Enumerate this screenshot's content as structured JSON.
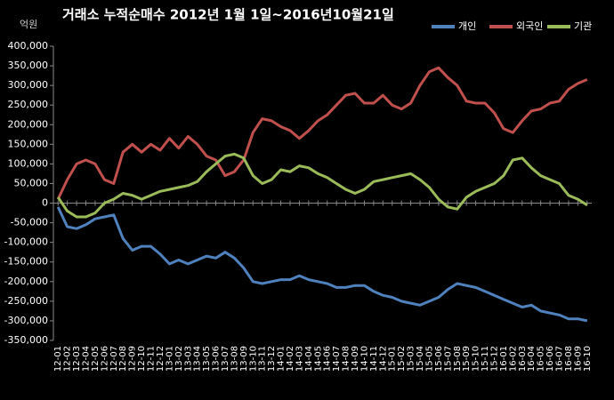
{
  "chart_data": {
    "type": "line",
    "title": "거래소 누적순매수 2012년 1월 1일~2016년10월21일",
    "y_label": "억원",
    "categories": [
      "12-01",
      "12-02",
      "12-03",
      "12-04",
      "12-05",
      "12-06",
      "12-07",
      "12-08",
      "12-09",
      "12-10",
      "12-11",
      "12-12",
      "13-01",
      "13-02",
      "13-03",
      "13-04",
      "13-05",
      "13-06",
      "13-07",
      "13-08",
      "13-09",
      "13-10",
      "13-11",
      "13-12",
      "14-01",
      "14-02",
      "14-03",
      "14-04",
      "14-05",
      "14-06",
      "14-07",
      "14-08",
      "14-09",
      "14-10",
      "14-11",
      "14-12",
      "15-01",
      "15-02",
      "15-03",
      "15-04",
      "15-05",
      "15-06",
      "15-07",
      "15-08",
      "15-09",
      "15-10",
      "15-11",
      "15-12",
      "16-01",
      "16-02",
      "16-03",
      "16-04",
      "16-05",
      "16-06",
      "16-07",
      "16-08",
      "16-09",
      "16-10"
    ],
    "series": [
      {
        "name": "개인",
        "color": "#4f81bd",
        "values": [
          -10000,
          -60000,
          -65000,
          -55000,
          -40000,
          -35000,
          -30000,
          -90000,
          -120000,
          -110000,
          -110000,
          -130000,
          -155000,
          -145000,
          -155000,
          -145000,
          -135000,
          -140000,
          -125000,
          -140000,
          -165000,
          -200000,
          -205000,
          -200000,
          -195000,
          -195000,
          -185000,
          -195000,
          -200000,
          -205000,
          -215000,
          -215000,
          -210000,
          -210000,
          -225000,
          -235000,
          -240000,
          -250000,
          -255000,
          -260000,
          -250000,
          -240000,
          -220000,
          -205000,
          -210000,
          -215000,
          -225000,
          -235000,
          -245000,
          -255000,
          -265000,
          -260000,
          -275000,
          -280000,
          -285000,
          -295000,
          -295000,
          -300000
        ]
      },
      {
        "name": "외국인",
        "color": "#c0504d",
        "values": [
          10000,
          60000,
          100000,
          110000,
          100000,
          60000,
          50000,
          130000,
          150000,
          130000,
          150000,
          135000,
          165000,
          140000,
          170000,
          150000,
          120000,
          110000,
          70000,
          80000,
          110000,
          180000,
          215000,
          210000,
          195000,
          185000,
          165000,
          185000,
          210000,
          225000,
          250000,
          275000,
          280000,
          255000,
          255000,
          275000,
          250000,
          240000,
          255000,
          300000,
          335000,
          345000,
          320000,
          300000,
          260000,
          255000,
          255000,
          230000,
          190000,
          180000,
          210000,
          235000,
          240000,
          255000,
          260000,
          290000,
          305000,
          315000
        ]
      },
      {
        "name": "기관",
        "color": "#9bbb59",
        "values": [
          15000,
          -20000,
          -35000,
          -35000,
          -25000,
          0,
          10000,
          25000,
          20000,
          10000,
          20000,
          30000,
          35000,
          40000,
          45000,
          55000,
          80000,
          100000,
          120000,
          125000,
          115000,
          70000,
          50000,
          60000,
          85000,
          80000,
          95000,
          90000,
          75000,
          65000,
          50000,
          35000,
          25000,
          35000,
          55000,
          60000,
          65000,
          70000,
          75000,
          60000,
          40000,
          10000,
          -10000,
          -15000,
          15000,
          30000,
          40000,
          50000,
          70000,
          110000,
          115000,
          90000,
          70000,
          60000,
          50000,
          20000,
          10000,
          -5000
        ]
      }
    ],
    "ylim": [
      -350000,
      400000
    ],
    "yticks": [
      {
        "value": -350000,
        "label": "-350,000"
      },
      {
        "value": -300000,
        "label": "-300,000"
      },
      {
        "value": -250000,
        "label": "-250,000"
      },
      {
        "value": -200000,
        "label": "-200,000"
      },
      {
        "value": -150000,
        "label": "-150,000"
      },
      {
        "value": -100000,
        "label": "-100,000"
      },
      {
        "value": -50000,
        "label": "-50,000"
      },
      0,
      {
        "value": 50000,
        "label": "50,000"
      },
      {
        "value": 100000,
        "label": "100,000"
      },
      {
        "value": 150000,
        "label": "150,000"
      },
      {
        "value": 200000,
        "label": "200,000"
      },
      {
        "value": 250000,
        "label": "250,000"
      },
      {
        "value": 300000,
        "label": "300,000"
      },
      {
        "value": 350000,
        "label": "350,000"
      },
      {
        "value": 400000,
        "label": "400,000"
      }
    ],
    "grid": false
  }
}
